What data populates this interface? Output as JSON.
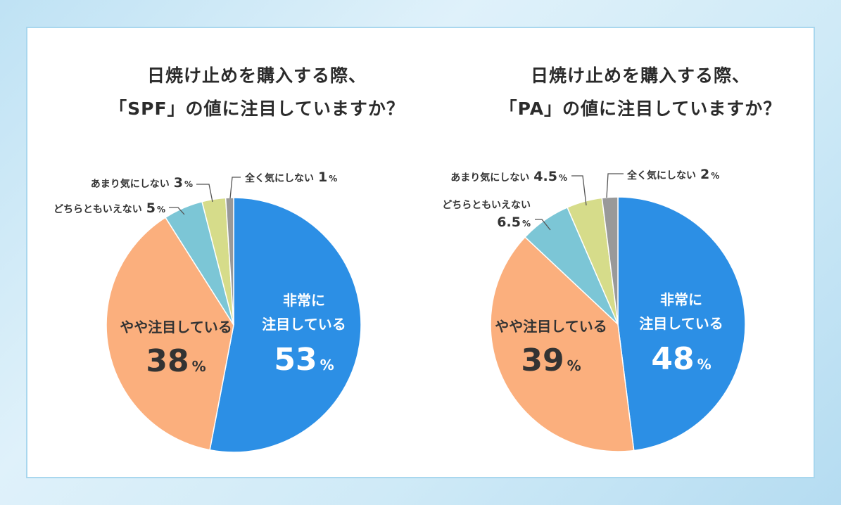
{
  "colors": {
    "very": "#2c8fe5",
    "somewhat": "#fbaf7d",
    "neutral": "#7cc6d6",
    "not_much": "#d6dc8a",
    "not_at_all": "#999999"
  },
  "chart_data": [
    {
      "type": "pie",
      "title_line1": "日焼け止めを購入する際、",
      "title_line2": "「SPF」の値に注目していますか？",
      "slices": [
        {
          "label_line1": "非常に",
          "label_line2": "注目している",
          "value": 53,
          "value_text": "53",
          "unit": "%",
          "color": "#2c8fe5"
        },
        {
          "label_line1": "やや注目している",
          "value": 38,
          "value_text": "38",
          "unit": "%",
          "color": "#fbaf7d"
        },
        {
          "label_line1": "どちらともいえない",
          "value": 5,
          "value_text": "5",
          "unit": "%",
          "color": "#7cc6d6"
        },
        {
          "label_line1": "あまり気にしない",
          "value": 3,
          "value_text": "3",
          "unit": "%",
          "color": "#d6dc8a"
        },
        {
          "label_line1": "全く気にしない",
          "value": 1,
          "value_text": "1",
          "unit": "%",
          "color": "#999999"
        }
      ]
    },
    {
      "type": "pie",
      "title_line1": "日焼け止めを購入する際、",
      "title_line2": "「PA」の値に注目していますか？",
      "slices": [
        {
          "label_line1": "非常に",
          "label_line2": "注目している",
          "value": 48,
          "value_text": "48",
          "unit": "%",
          "color": "#2c8fe5"
        },
        {
          "label_line1": "やや注目している",
          "value": 39,
          "value_text": "39",
          "unit": "%",
          "color": "#fbaf7d"
        },
        {
          "label_line1": "どちらともいえない",
          "value": 6.5,
          "value_text": "6.5",
          "unit": "%",
          "color": "#7cc6d6"
        },
        {
          "label_line1": "あまり気にしない",
          "value": 4.5,
          "value_text": "4.5",
          "unit": "%",
          "color": "#d6dc8a"
        },
        {
          "label_line1": "全く気にしない",
          "value": 2,
          "value_text": "2",
          "unit": "%",
          "color": "#999999"
        }
      ]
    }
  ]
}
